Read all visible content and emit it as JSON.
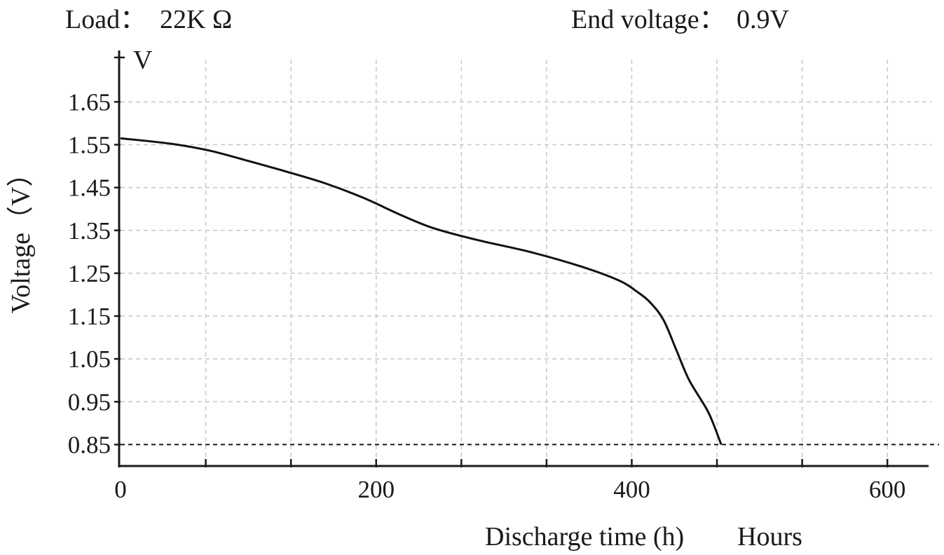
{
  "header": {
    "load_label": "Load：",
    "load_value": "22K Ω",
    "end_voltage_label": "End voltage：",
    "end_voltage_value": "0.9V"
  },
  "chart_data": {
    "type": "line",
    "title": "",
    "xlabel": "Discharge time (h)",
    "xunit": "Hours",
    "ylabel": "Voltage（V）",
    "yunit": "V",
    "xlim": [
      0,
      635
    ],
    "ylim": [
      0.8,
      1.77
    ],
    "x_ticks": [
      0,
      200,
      400,
      600
    ],
    "y_ticks": [
      0.85,
      0.95,
      1.05,
      1.15,
      1.25,
      1.35,
      1.45,
      1.55,
      1.65
    ],
    "y_tick_labels": [
      "0.85",
      "0.95",
      "1.05",
      "1.15",
      "1.25",
      "1.35",
      "1.45",
      "1.55",
      "1.65"
    ],
    "x_tick_labels": [
      "0",
      "200",
      "400",
      "600"
    ],
    "grid": true,
    "reference_line": {
      "y": 0.85,
      "style": "dashed"
    },
    "series": [
      {
        "values": [
          {
            "x": 0,
            "y": 1.565
          },
          {
            "x": 40,
            "y": 1.552
          },
          {
            "x": 70,
            "y": 1.536
          },
          {
            "x": 100,
            "y": 1.512
          },
          {
            "x": 130,
            "y": 1.487
          },
          {
            "x": 160,
            "y": 1.46
          },
          {
            "x": 190,
            "y": 1.426
          },
          {
            "x": 220,
            "y": 1.385
          },
          {
            "x": 245,
            "y": 1.355
          },
          {
            "x": 280,
            "y": 1.327
          },
          {
            "x": 320,
            "y": 1.3
          },
          {
            "x": 360,
            "y": 1.266
          },
          {
            "x": 390,
            "y": 1.233
          },
          {
            "x": 405,
            "y": 1.205
          },
          {
            "x": 415,
            "y": 1.18
          },
          {
            "x": 425,
            "y": 1.14
          },
          {
            "x": 435,
            "y": 1.07
          },
          {
            "x": 445,
            "y": 1.0
          },
          {
            "x": 460,
            "y": 0.925
          },
          {
            "x": 470,
            "y": 0.85
          }
        ]
      }
    ]
  }
}
